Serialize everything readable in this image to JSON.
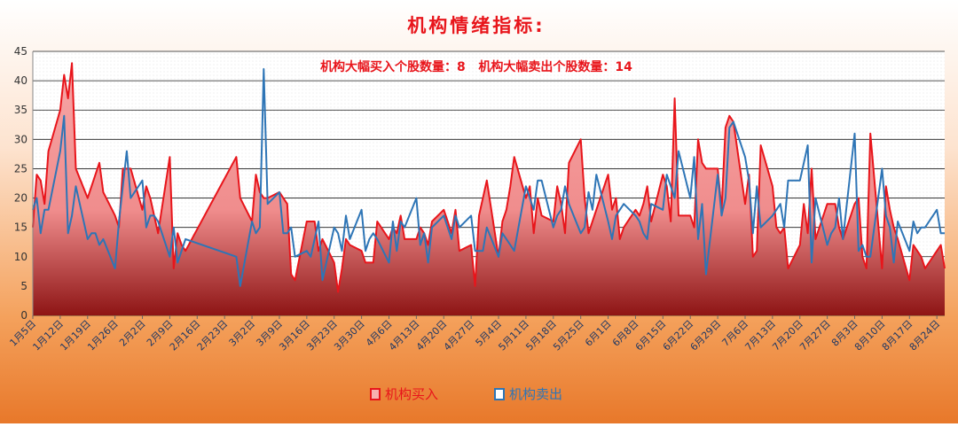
{
  "chart_data": {
    "type": "line",
    "title": "机构情绪指标:",
    "annotation": "机构大幅买入个股数量：8   机构大幅卖出个股数量：14",
    "x": [
      0,
      1,
      2,
      3,
      4,
      7,
      8,
      9,
      10,
      11,
      14,
      15,
      16,
      17,
      18,
      21,
      22,
      23,
      24,
      25,
      28,
      29,
      30,
      31,
      32,
      35,
      36,
      37,
      38,
      39,
      52,
      53,
      56,
      57,
      58,
      59,
      60,
      63,
      64,
      65,
      66,
      67,
      70,
      71,
      72,
      73,
      74,
      77,
      78,
      79,
      80,
      81,
      84,
      85,
      86,
      87,
      88,
      91,
      92,
      93,
      94,
      95,
      98,
      99,
      100,
      101,
      102,
      105,
      106,
      107,
      108,
      109,
      112,
      113,
      114,
      115,
      116,
      119,
      120,
      121,
      122,
      123,
      126,
      127,
      128,
      129,
      130,
      133,
      134,
      135,
      136,
      137,
      140,
      141,
      142,
      143,
      144,
      147,
      148,
      149,
      150,
      151,
      154,
      155,
      156,
      157,
      158,
      161,
      162,
      163,
      164,
      165,
      168,
      169,
      170,
      171,
      172,
      175,
      176,
      177,
      178,
      179,
      182,
      183,
      184,
      185,
      186,
      189,
      190,
      191,
      192,
      193,
      196,
      197,
      198,
      199,
      200,
      203,
      204,
      205,
      206,
      207,
      210,
      211,
      212,
      213,
      214,
      217,
      218,
      219,
      220,
      221,
      224,
      225,
      226,
      227,
      228,
      231,
      232,
      233
    ],
    "series": [
      {
        "name": "机构买入",
        "color": "#e8151b",
        "fill": true,
        "values": [
          15,
          24,
          23,
          19,
          28,
          35,
          41,
          37,
          43,
          25,
          20,
          22,
          24,
          26,
          21,
          17,
          15,
          25,
          25,
          25,
          18,
          22,
          20,
          17,
          14,
          27,
          8,
          14,
          12,
          11,
          27,
          20,
          16,
          24,
          21,
          20,
          20,
          21,
          20,
          19,
          7,
          6,
          16,
          16,
          16,
          11,
          13,
          9,
          4,
          8,
          13,
          12,
          11,
          9,
          9,
          9,
          16,
          13,
          15,
          14,
          17,
          13,
          13,
          15,
          14,
          12,
          16,
          18,
          16,
          14,
          18,
          11,
          12,
          5,
          17,
          20,
          23,
          10,
          16,
          18,
          22,
          27,
          20,
          22,
          14,
          20,
          17,
          16,
          22,
          19,
          14,
          26,
          30,
          20,
          14,
          16,
          18,
          24,
          18,
          20,
          13,
          15,
          18,
          17,
          19,
          22,
          16,
          24,
          22,
          16,
          37,
          17,
          17,
          15,
          30,
          26,
          25,
          25,
          18,
          32,
          34,
          33,
          19,
          24,
          10,
          11,
          29,
          22,
          15,
          14,
          15,
          8,
          12,
          19,
          14,
          25,
          13,
          19,
          19,
          19,
          15,
          13,
          19,
          20,
          10,
          8,
          31,
          8,
          22,
          18,
          15,
          13,
          6,
          12,
          11,
          10,
          8,
          11,
          12,
          8
        ]
      },
      {
        "name": "机构卖出",
        "color": "#2e75b6",
        "fill": false,
        "values": [
          18,
          20,
          14,
          18,
          18,
          28,
          34,
          14,
          17,
          22,
          13,
          14,
          14,
          12,
          13,
          8,
          16,
          22,
          28,
          20,
          23,
          15,
          17,
          17,
          16,
          10,
          15,
          9,
          11,
          13,
          10,
          5,
          16,
          14,
          15,
          42,
          19,
          21,
          14,
          14,
          15,
          10,
          11,
          10,
          13,
          16,
          6,
          15,
          14,
          11,
          17,
          13,
          18,
          11,
          13,
          14,
          13,
          9,
          16,
          11,
          16,
          15,
          20,
          12,
          14,
          9,
          15,
          17,
          15,
          13,
          17,
          15,
          17,
          11,
          11,
          11,
          15,
          10,
          14,
          13,
          12,
          11,
          22,
          20,
          18,
          23,
          23,
          15,
          17,
          18,
          22,
          19,
          14,
          15,
          21,
          18,
          24,
          16,
          13,
          17,
          18,
          19,
          17,
          16,
          14,
          13,
          19,
          18,
          24,
          22,
          20,
          28,
          20,
          27,
          13,
          19,
          7,
          24,
          17,
          20,
          32,
          33,
          27,
          23,
          14,
          22,
          15,
          17,
          18,
          19,
          15,
          23,
          23,
          26,
          29,
          9,
          20,
          12,
          14,
          15,
          20,
          13,
          31,
          11,
          12,
          10,
          10,
          25,
          17,
          15,
          9,
          16,
          11,
          16,
          14,
          15,
          15,
          18,
          14,
          14
        ]
      }
    ],
    "xlim": [
      0,
      233
    ],
    "xticks": [
      {
        "value": 0,
        "label": "1月5日"
      },
      {
        "value": 7,
        "label": "1月12日"
      },
      {
        "value": 14,
        "label": "1月19日"
      },
      {
        "value": 21,
        "label": "1月26日"
      },
      {
        "value": 28,
        "label": "2月2日"
      },
      {
        "value": 35,
        "label": "2月9日"
      },
      {
        "value": 42,
        "label": "2月16日"
      },
      {
        "value": 49,
        "label": "2月23日"
      },
      {
        "value": 56,
        "label": "3月2日"
      },
      {
        "value": 63,
        "label": "3月9日"
      },
      {
        "value": 70,
        "label": "3月16日"
      },
      {
        "value": 77,
        "label": "3月23日"
      },
      {
        "value": 84,
        "label": "3月30日"
      },
      {
        "value": 91,
        "label": "4月6日"
      },
      {
        "value": 98,
        "label": "4月13日"
      },
      {
        "value": 105,
        "label": "4月20日"
      },
      {
        "value": 112,
        "label": "4月27日"
      },
      {
        "value": 119,
        "label": "5月4日"
      },
      {
        "value": 126,
        "label": "5月11日"
      },
      {
        "value": 133,
        "label": "5月18日"
      },
      {
        "value": 140,
        "label": "5月25日"
      },
      {
        "value": 147,
        "label": "6月1日"
      },
      {
        "value": 154,
        "label": "6月8日"
      },
      {
        "value": 161,
        "label": "6月15日"
      },
      {
        "value": 168,
        "label": "6月22日"
      },
      {
        "value": 175,
        "label": "6月29日"
      },
      {
        "value": 182,
        "label": "7月6日"
      },
      {
        "value": 189,
        "label": "7月13日"
      },
      {
        "value": 196,
        "label": "7月20日"
      },
      {
        "value": 203,
        "label": "7月27日"
      },
      {
        "value": 210,
        "label": "8月3日"
      },
      {
        "value": 217,
        "label": "8月10日"
      },
      {
        "value": 224,
        "label": "8月17日"
      },
      {
        "value": 231,
        "label": "8月24日"
      }
    ],
    "ylim": [
      0,
      45
    ],
    "yticks": [
      0,
      5,
      10,
      15,
      20,
      25,
      30,
      35,
      40,
      45
    ],
    "grid": true,
    "legend": "bottom"
  }
}
